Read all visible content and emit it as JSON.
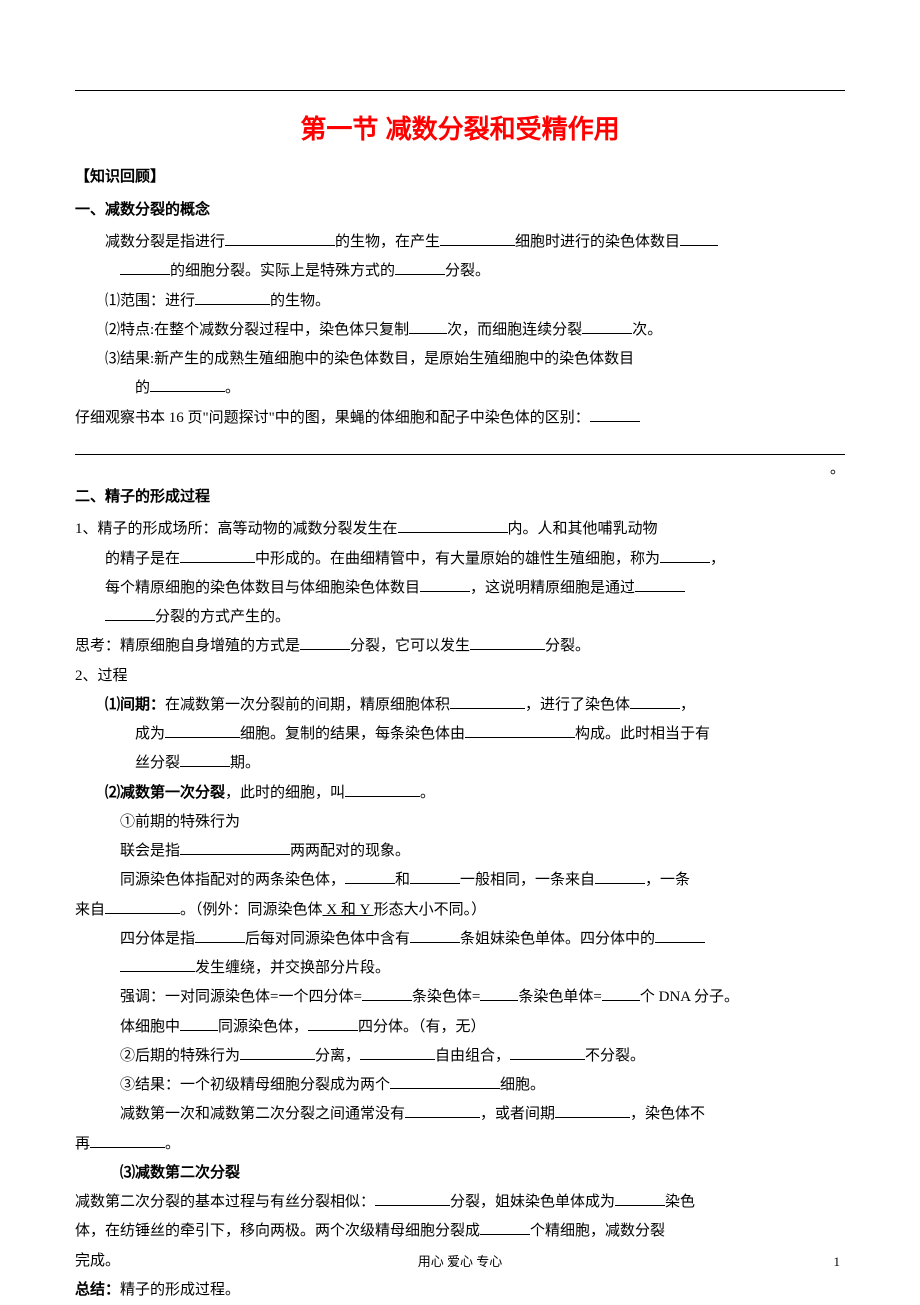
{
  "title": "第一节  减数分裂和受精作用",
  "section_a": {
    "header": "【知识回顾】",
    "sub1": "一、减数分裂的概念",
    "p1_a": "减数分裂是指进行",
    "p1_b": "的生物，在产生",
    "p1_c": "细胞时进行的染色体数目",
    "p1_d": "的细胞分裂。实际上是特殊方式的",
    "p1_e": "分裂。",
    "item1_a": "⑴范围：进行",
    "item1_b": "的生物。",
    "item2_a": "⑵特点:在整个减数分裂过程中，染色体只复制",
    "item2_b": "次，而细胞连续分裂",
    "item2_c": "次。",
    "item3_a": "⑶结果:新产生的成熟生殖细胞中的染色体数目，是原始生殖细胞中的染色体数目",
    "item3_b": "的",
    "item3_c": "。",
    "p2_a": "仔细观察书本 16 页\"问题探讨\"中的图，果蝇的体细胞和配子中染色体的区别：",
    "p2_period": "。"
  },
  "section_b": {
    "sub1": "二、精子的形成过程",
    "p1_a": "1、精子的形成场所：高等动物的减数分裂发生在",
    "p1_b": "内。人和其他哺乳动物",
    "p2_a": "的精子是在",
    "p2_b": "中形成的。在曲细精管中，有大量原始的雄性生殖细胞，称为",
    "p2_c": "，",
    "p3_a": "每个精原细胞的染色体数目与体细胞染色体数目",
    "p3_b": "，这说明精原细胞是通过",
    "p4_a": "分裂的方式产生的。",
    "think_a": "思考：精原细胞自身增殖的方式是",
    "think_b": "分裂，它可以发生",
    "think_c": "分裂。",
    "item2": "2、过程",
    "phase1_label": "⑴间期：",
    "phase1_a": "在减数第一次分裂前的间期，精原细胞体积",
    "phase1_b": "，进行了染色体",
    "phase1_c": "，",
    "phase1_d": "成为",
    "phase1_e": "细胞。复制的结果，每条染色体由",
    "phase1_f": "构成。此时相当于有",
    "phase1_g": "丝分裂",
    "phase1_h": "期。",
    "phase2_label": "⑵减数第一次分裂",
    "phase2_a": "，此时的细胞，叫",
    "phase2_b": "。",
    "sub_q1": "①前期的特殊行为",
    "lianh_a": "联会是指",
    "lianh_b": "两两配对的现象。",
    "tongyuan_a": "同源染色体指配对的两条染色体，",
    "tongyuan_b": "和",
    "tongyuan_c": "一般相同，一条来自",
    "tongyuan_d": "，一条",
    "tongyuan_e": "来自",
    "tongyuan_f": "。（例外：同源染色体",
    "tongyuan_g": " X 和 Y ",
    "tongyuan_h": "形态大小不同。）",
    "sifenti_a": "四分体是指",
    "sifenti_b": "后每对同源染色体中含有",
    "sifenti_c": "条姐妹染色单体。四分体中的",
    "sifenti_d": "发生缠绕，并交换部分片段。",
    "emphasis_a": "强调：一对同源染色体=一个四分体=",
    "emphasis_b": "条染色体=",
    "emphasis_c": "条染色单体=",
    "emphasis_d": "个 DNA 分子。",
    "tixi_a": "体细胞中",
    "tixi_b": "同源染色体，",
    "tixi_c": "四分体。（有，无）",
    "sub_q2_a": "②后期的特殊行为",
    "sub_q2_b": "分离，",
    "sub_q2_c": "自由组合，",
    "sub_q2_d": "不分裂。",
    "sub_q3_a": "③结果：一个初级精母细胞分裂成为两个",
    "sub_q3_b": "细胞。",
    "inter_a": "减数第一次和减数第二次分裂之间通常没有",
    "inter_b": "，或者间期",
    "inter_c": "，染色体不",
    "inter_d": "再",
    "inter_e": "。",
    "phase3_label": "⑶减数第二次分裂",
    "phase3_a": "减数第二次分裂的基本过程与有丝分裂相似：",
    "phase3_b": "分裂，姐妹染色单体成为",
    "phase3_c": "染色",
    "phase3_d": "体，在纺锤丝的牵引下，移向两极。两个次级精母细胞分裂成",
    "phase3_e": "个精细胞，减数分裂",
    "phase3_f": "完成。",
    "summary_label": "总结：",
    "summary_text": "精子的形成过程。"
  },
  "footer": "用心  爱心  专心",
  "page_num": "1"
}
